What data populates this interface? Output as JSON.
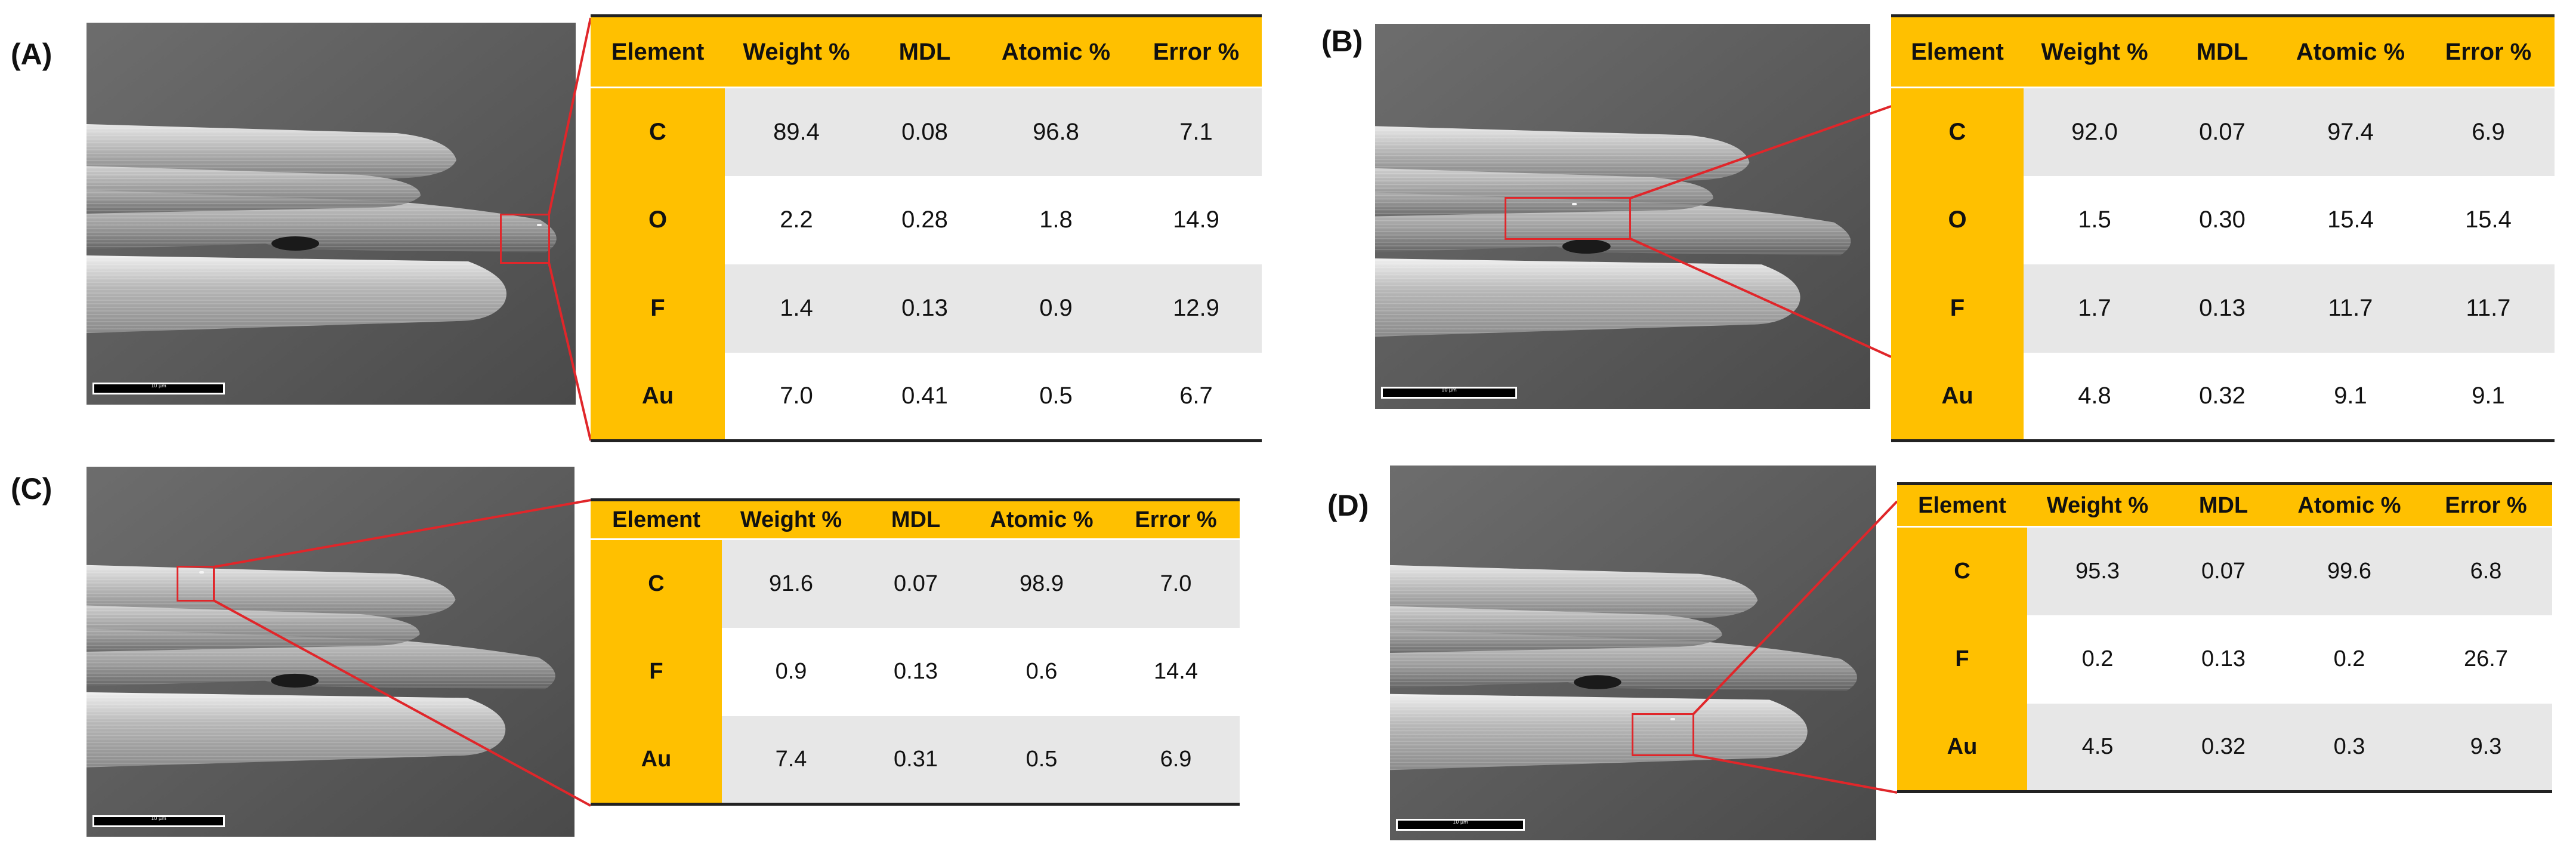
{
  "panels": [
    {
      "label": "(A)",
      "roi_tag": "",
      "scale_label": "10 µm",
      "columns": [
        "Element",
        "Weight %",
        "MDL",
        "Atomic %",
        "Error %"
      ],
      "rows": [
        {
          "element": "C",
          "weight": "89.4",
          "mdl": "0.08",
          "atomic": "96.8",
          "error": "7.1"
        },
        {
          "element": "O",
          "weight": "2.2",
          "mdl": "0.28",
          "atomic": "1.8",
          "error": "14.9"
        },
        {
          "element": "F",
          "weight": "1.4",
          "mdl": "0.13",
          "atomic": "0.9",
          "error": "12.9"
        },
        {
          "element": "Au",
          "weight": "7.0",
          "mdl": "0.41",
          "atomic": "0.5",
          "error": "6.7"
        }
      ]
    },
    {
      "label": "(B)",
      "roi_tag": "",
      "scale_label": "10 µm",
      "columns": [
        "Element",
        "Weight %",
        "MDL",
        "Atomic %",
        "Error %"
      ],
      "rows": [
        {
          "element": "C",
          "weight": "92.0",
          "mdl": "0.07",
          "atomic": "97.4",
          "error": "6.9"
        },
        {
          "element": "O",
          "weight": "1.5",
          "mdl": "0.30",
          "atomic": "15.4",
          "error": "15.4"
        },
        {
          "element": "F",
          "weight": "1.7",
          "mdl": "0.13",
          "atomic": "11.7",
          "error": "11.7"
        },
        {
          "element": "Au",
          "weight": "4.8",
          "mdl": "0.32",
          "atomic": "9.1",
          "error": "9.1"
        }
      ]
    },
    {
      "label": "(C)",
      "roi_tag": "",
      "scale_label": "10 µm",
      "columns": [
        "Element",
        "Weight %",
        "MDL",
        "Atomic %",
        "Error %"
      ],
      "rows": [
        {
          "element": "C",
          "weight": "91.6",
          "mdl": "0.07",
          "atomic": "98.9",
          "error": "7.0"
        },
        {
          "element": "F",
          "weight": "0.9",
          "mdl": "0.13",
          "atomic": "0.6",
          "error": "14.4"
        },
        {
          "element": "Au",
          "weight": "7.4",
          "mdl": "0.31",
          "atomic": "0.5",
          "error": "6.9"
        }
      ]
    },
    {
      "label": "(D)",
      "roi_tag": "",
      "scale_label": "10 µm",
      "columns": [
        "Element",
        "Weight %",
        "MDL",
        "Atomic %",
        "Error %"
      ],
      "rows": [
        {
          "element": "C",
          "weight": "95.3",
          "mdl": "0.07",
          "atomic": "99.6",
          "error": "6.8"
        },
        {
          "element": "F",
          "weight": "0.2",
          "mdl": "0.13",
          "atomic": "0.2",
          "error": "26.7"
        },
        {
          "element": "Au",
          "weight": "4.5",
          "mdl": "0.32",
          "atomic": "0.3",
          "error": "9.3"
        }
      ]
    }
  ],
  "colors": {
    "header": "#ffc000",
    "band": "#e7e7e7",
    "roi": "#e0262a"
  }
}
